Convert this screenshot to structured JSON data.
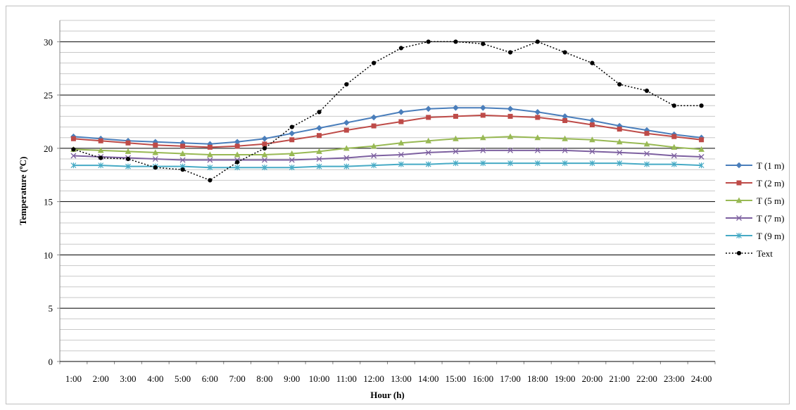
{
  "chart_data": {
    "type": "line",
    "xlabel": "Hour (h)",
    "ylabel": "Temperature (ºC)",
    "ylim": [
      0,
      32
    ],
    "yticks": [
      0,
      5,
      10,
      15,
      20,
      25,
      30
    ],
    "grid": "horizontal major and minor gridlines",
    "legend_position": "right",
    "categories": [
      "1:00",
      "2:00",
      "3:00",
      "4:00",
      "5:00",
      "6:00",
      "7:00",
      "8:00",
      "9:00",
      "10:00",
      "11:00",
      "12:00",
      "13:00",
      "14:00",
      "15:00",
      "16:00",
      "17:00",
      "18:00",
      "19:00",
      "20:00",
      "21:00",
      "22:00",
      "23:00",
      "24:00"
    ],
    "series": [
      {
        "name": "T (1 m)",
        "color": "#4a7ebb",
        "marker": "diamond",
        "dash": "solid",
        "values": [
          21.1,
          20.9,
          20.7,
          20.6,
          20.5,
          20.4,
          20.6,
          20.9,
          21.4,
          21.9,
          22.4,
          22.9,
          23.4,
          23.7,
          23.8,
          23.8,
          23.7,
          23.4,
          23.0,
          22.6,
          22.1,
          21.7,
          21.3,
          21.0
        ]
      },
      {
        "name": "T (2 m)",
        "color": "#be4b48",
        "marker": "square",
        "dash": "solid",
        "values": [
          20.9,
          20.7,
          20.5,
          20.3,
          20.2,
          20.1,
          20.2,
          20.4,
          20.8,
          21.2,
          21.7,
          22.1,
          22.5,
          22.9,
          23.0,
          23.1,
          23.0,
          22.9,
          22.6,
          22.2,
          21.8,
          21.4,
          21.1,
          20.8
        ]
      },
      {
        "name": "T (5 m)",
        "color": "#98b954",
        "marker": "triangle",
        "dash": "solid",
        "values": [
          19.9,
          19.8,
          19.7,
          19.6,
          19.5,
          19.4,
          19.4,
          19.4,
          19.5,
          19.7,
          20.0,
          20.2,
          20.5,
          20.7,
          20.9,
          21.0,
          21.1,
          21.0,
          20.9,
          20.8,
          20.6,
          20.4,
          20.1,
          19.9
        ]
      },
      {
        "name": "T (7 m)",
        "color": "#7d60a0",
        "marker": "x",
        "dash": "solid",
        "values": [
          19.3,
          19.2,
          19.1,
          19.0,
          18.9,
          18.9,
          18.9,
          18.9,
          18.9,
          19.0,
          19.1,
          19.3,
          19.4,
          19.6,
          19.7,
          19.8,
          19.8,
          19.8,
          19.8,
          19.7,
          19.6,
          19.5,
          19.3,
          19.2
        ]
      },
      {
        "name": "T (9 m)",
        "color": "#46aac5",
        "marker": "star",
        "dash": "solid",
        "values": [
          18.4,
          18.4,
          18.3,
          18.3,
          18.3,
          18.2,
          18.2,
          18.2,
          18.2,
          18.3,
          18.3,
          18.4,
          18.5,
          18.5,
          18.6,
          18.6,
          18.6,
          18.6,
          18.6,
          18.6,
          18.6,
          18.5,
          18.5,
          18.4
        ]
      },
      {
        "name": "Text",
        "color": "#000000",
        "marker": "circle",
        "dash": "dotted",
        "values": [
          19.9,
          19.1,
          19.0,
          18.2,
          18.0,
          17.0,
          18.7,
          20.0,
          22.0,
          23.4,
          26.0,
          28.0,
          29.4,
          30.0,
          30.0,
          29.8,
          29.0,
          30.0,
          29.0,
          28.0,
          26.0,
          25.4,
          24.0,
          24.0
        ]
      }
    ]
  }
}
